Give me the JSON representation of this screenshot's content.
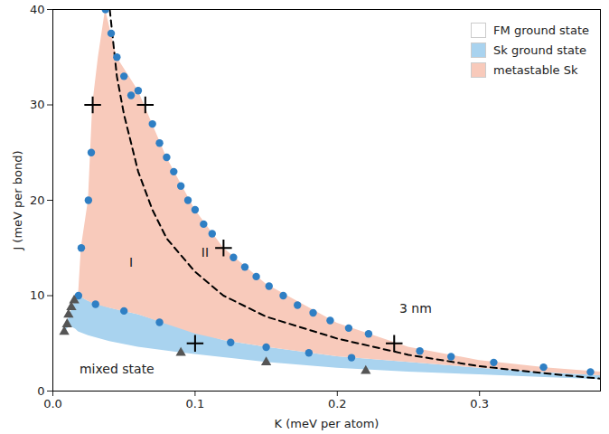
{
  "chart_data": {
    "type": "scatter",
    "x_label": "K (meV per atom)",
    "y_label": "J (meV per bond)",
    "xlim": [
      0,
      0.385
    ],
    "ylim": [
      0,
      40
    ],
    "xticks": [
      {
        "value": 0,
        "label": "0.0"
      },
      0.1,
      0.2,
      0.3
    ],
    "yticks": [
      0,
      10,
      20,
      30,
      40
    ],
    "grid": false,
    "legend": "top-right",
    "series": [
      {
        "name": "FM ground state",
        "type": "area",
        "color": "#ffffff",
        "x": [],
        "values_low": [],
        "values_high": []
      },
      {
        "name": "Sk ground state",
        "type": "area",
        "color": "#a9d3ef",
        "x": [
          0.008,
          0.012,
          0.016,
          0.018,
          0.025,
          0.04,
          0.06,
          0.09,
          0.12,
          0.15,
          0.2,
          0.25,
          0.3,
          0.35,
          0.385
        ],
        "values_low": [
          6.2,
          6.8,
          6.5,
          6.2,
          5.8,
          5.2,
          4.6,
          4.0,
          3.5,
          3.0,
          2.4,
          2.0,
          1.7,
          1.4,
          1.2
        ],
        "values_high": [
          6.2,
          8.0,
          9.6,
          10.0,
          9.4,
          8.7,
          8.0,
          6.6,
          5.3,
          4.6,
          3.6,
          3.0,
          2.4,
          1.9,
          1.6
        ]
      },
      {
        "name": "metastable Sk",
        "type": "area",
        "color": "#f8cabb",
        "x": [
          0.018,
          0.02,
          0.025,
          0.028,
          0.032,
          0.037,
          0.045,
          0.06,
          0.08,
          0.1,
          0.12,
          0.15,
          0.2,
          0.25,
          0.3,
          0.35,
          0.385
        ],
        "values_low": [
          10.0,
          9.8,
          9.4,
          9.2,
          9.0,
          8.8,
          8.5,
          8.0,
          7.0,
          6.0,
          5.3,
          4.6,
          3.6,
          3.0,
          2.4,
          1.9,
          1.6
        ],
        "values_high": [
          10.0,
          15.0,
          20.0,
          30.0,
          35.0,
          40.0,
          35.0,
          31.5,
          24.5,
          19.0,
          15.0,
          11.2,
          7.1,
          4.6,
          3.2,
          2.4,
          2.0
        ]
      },
      {
        "type": "line",
        "line_style": "dashed",
        "color": "#000000",
        "x": [
          0.04,
          0.045,
          0.05,
          0.06,
          0.07,
          0.08,
          0.1,
          0.12,
          0.15,
          0.2,
          0.25,
          0.3,
          0.35,
          0.385
        ],
        "values": [
          40,
          33,
          29,
          23,
          19,
          16,
          12.5,
          10,
          7.8,
          5.5,
          3.8,
          2.6,
          1.8,
          1.3
        ]
      },
      {
        "type": "scatter",
        "marker": "circle",
        "color": "#2f7fc4",
        "x": [
          0.037,
          0.041,
          0.045,
          0.05,
          0.055,
          0.06,
          0.07,
          0.075,
          0.08,
          0.085,
          0.09,
          0.095,
          0.1,
          0.106,
          0.112,
          0.127,
          0.135,
          0.143,
          0.152,
          0.162,
          0.172,
          0.183,
          0.195,
          0.208,
          0.222,
          0.258,
          0.28,
          0.31,
          0.345,
          0.378,
          0.02,
          0.025,
          0.027,
          0.018,
          0.03,
          0.05,
          0.075,
          0.125,
          0.15,
          0.18,
          0.21
        ],
        "values": [
          40,
          37.5,
          35,
          33,
          31,
          31.5,
          28,
          26,
          24.5,
          23,
          21.5,
          20,
          19,
          17.5,
          16.5,
          14,
          13,
          12,
          11,
          10,
          9,
          8.2,
          7.4,
          6.6,
          6.0,
          4.2,
          3.6,
          3.0,
          2.5,
          2.0,
          15,
          20,
          25,
          10,
          9.1,
          8.4,
          7.2,
          5.1,
          4.6,
          4.0,
          3.5
        ]
      },
      {
        "type": "scatter",
        "marker": "triangle",
        "color": "#555555",
        "x": [
          0.008,
          0.01,
          0.011,
          0.013,
          0.015,
          0.09,
          0.15,
          0.22
        ],
        "values": [
          6.2,
          7.0,
          8.0,
          8.8,
          9.5,
          4.0,
          3.0,
          2.1
        ]
      },
      {
        "type": "scatter",
        "marker": "cross",
        "color": "#000000",
        "x": [
          0.028,
          0.065,
          0.12,
          0.1,
          0.24
        ],
        "values": [
          30,
          30,
          15,
          5,
          5
        ]
      }
    ],
    "annotations": [
      {
        "text": "I",
        "x": 0.055,
        "y": 13.5
      },
      {
        "text": "II",
        "x": 0.107,
        "y": 14.5
      },
      {
        "text": "3 nm",
        "x": 0.255,
        "y": 8.6
      },
      {
        "text": "mixed state",
        "x": 0.045,
        "y": 2.3
      }
    ]
  }
}
